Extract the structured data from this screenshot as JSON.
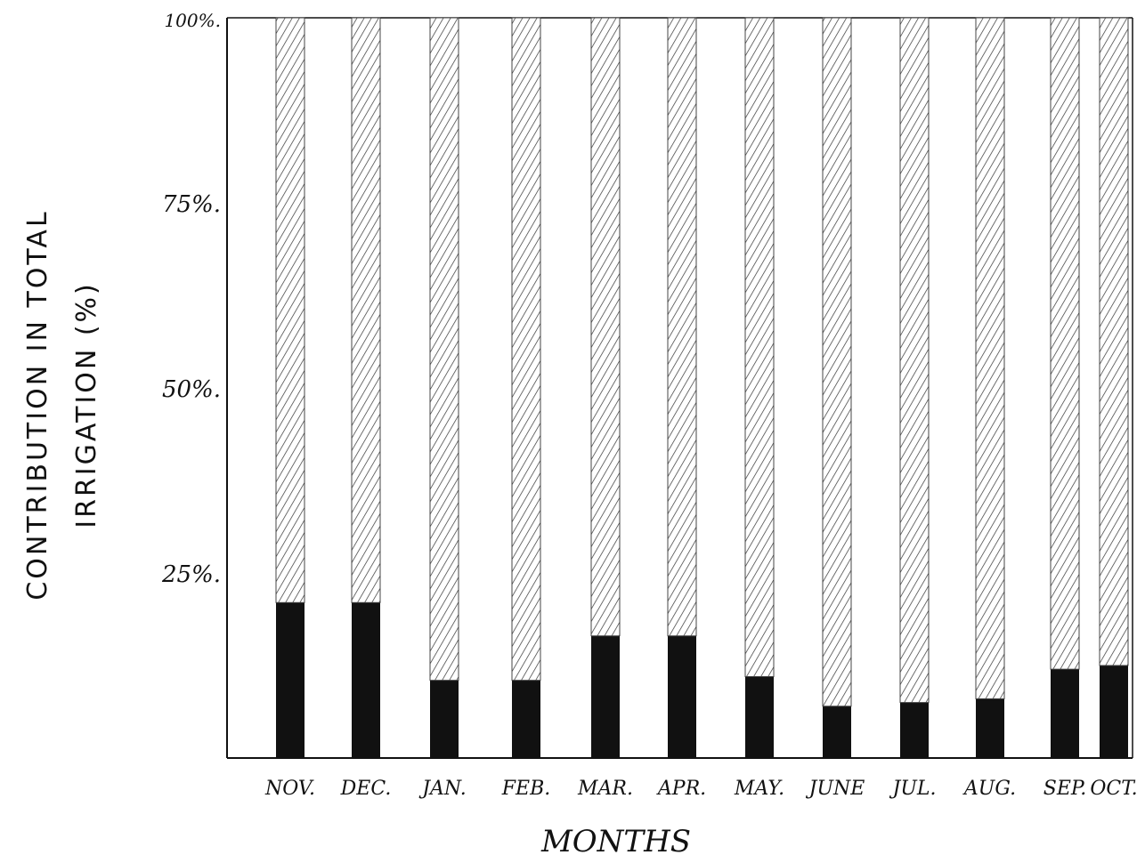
{
  "chart_data": {
    "type": "bar",
    "stacked": true,
    "categories": [
      "NOV.",
      "DEC.",
      "JAN.",
      "FEB.",
      "MAR.",
      "APR.",
      "MAY.",
      "JUNE",
      "JUL.",
      "AUG.",
      "SEP.",
      "OCT."
    ],
    "series": [
      {
        "fill": "solid",
        "color": "#111111",
        "values": [
          21,
          21,
          10.5,
          10.5,
          16.5,
          16.5,
          11,
          7,
          7.5,
          8,
          12,
          12.5
        ]
      },
      {
        "fill": "hatched",
        "color": "#444444",
        "values": [
          79,
          79,
          89.5,
          89.5,
          83.5,
          83.5,
          89,
          93,
          92.5,
          92,
          88,
          87.5
        ]
      }
    ],
    "yticks": [
      "100%.",
      "75%.",
      "50%.",
      "25%."
    ],
    "ytick_values": [
      100,
      75,
      50,
      25
    ],
    "ylim": [
      0,
      100
    ],
    "xlabel": "MONTHS",
    "ylabel_line1": "CONTRIBUTION IN TOTAL",
    "ylabel_line2": "IRRIGATION (%)",
    "grid": false
  }
}
